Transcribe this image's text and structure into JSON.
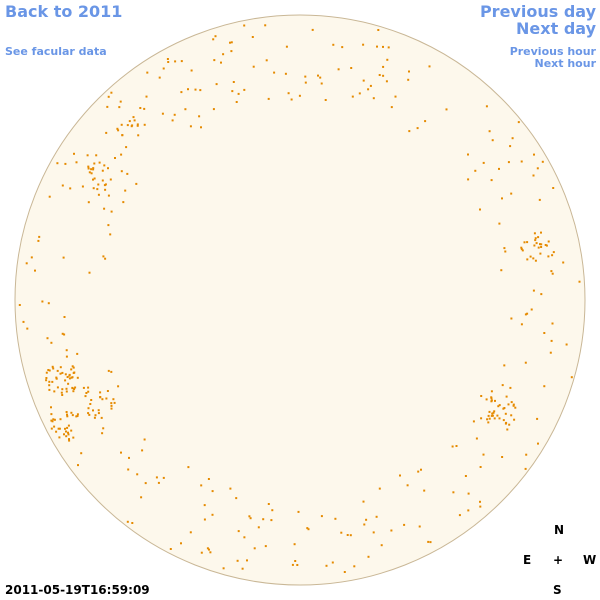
{
  "navigation": {
    "back_year": "Back to 2011",
    "facular_data": "See facular data",
    "previous_day": "Previous day",
    "next_day": "Next day",
    "previous_hour": "Previous hour",
    "next_hour": "Next hour"
  },
  "compass": {
    "north": "N",
    "east": "E",
    "center": "+",
    "west": "W",
    "south": "S"
  },
  "timestamp": "2011-05-19T16:59:09"
}
